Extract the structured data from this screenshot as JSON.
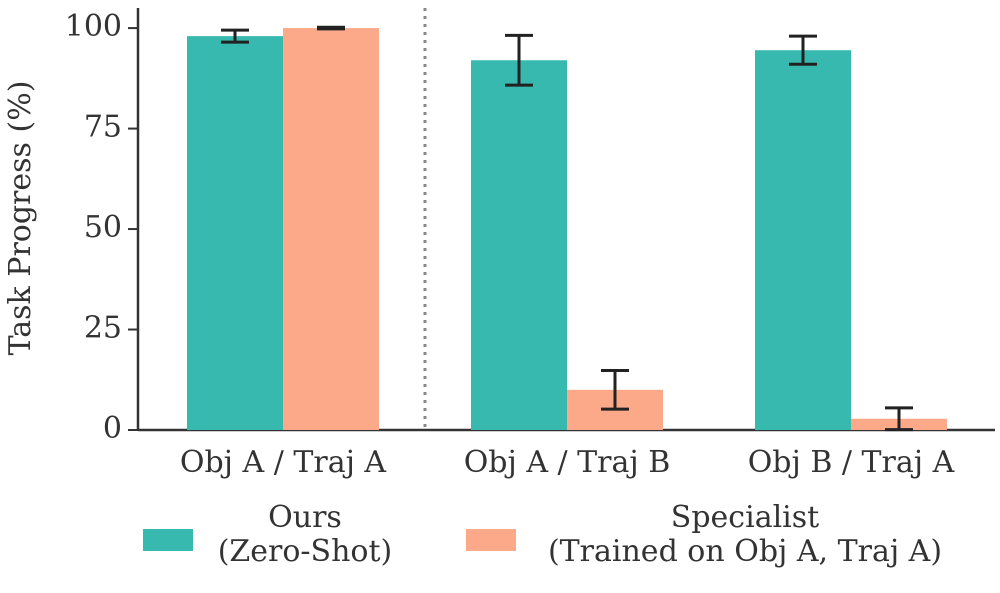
{
  "chart_data": {
    "type": "bar",
    "categories": [
      "Obj A / Traj A",
      "Obj A / Traj B",
      "Obj B / Traj A"
    ],
    "y_label": "Task Progress (%)",
    "ylim": [
      0,
      105
    ],
    "yticks": [
      0,
      25,
      50,
      75,
      100
    ],
    "series": [
      {
        "name": "Ours\n(Zero-Shot)",
        "color": "#38b9b0",
        "values": [
          98,
          92,
          94.5
        ],
        "errors": [
          1.5,
          6.2,
          3.5
        ]
      },
      {
        "name": "Specialist\n(Trained on Obj A, Traj A)",
        "color": "#fca98a",
        "values": [
          100,
          10,
          2.8
        ],
        "errors": [
          0.2,
          4.8,
          2.7
        ]
      }
    ]
  }
}
